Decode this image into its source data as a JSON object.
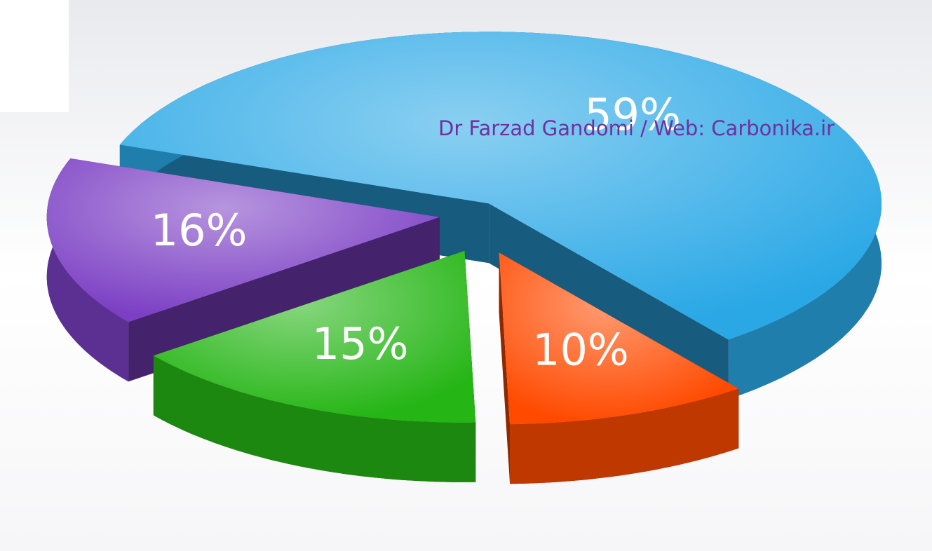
{
  "chart_data": {
    "type": "pie",
    "categories": [
      null,
      null,
      null,
      null
    ],
    "values": [
      59,
      10,
      15,
      16
    ],
    "value_labels": [
      "59%",
      "10%",
      "15%",
      "16%"
    ],
    "colors": [
      "#2aa8e6",
      "#ff4a00",
      "#25b515",
      "#7b3ec4"
    ],
    "annotation": "Dr Farzad Gandomi / Web: Carbonika.ir"
  }
}
